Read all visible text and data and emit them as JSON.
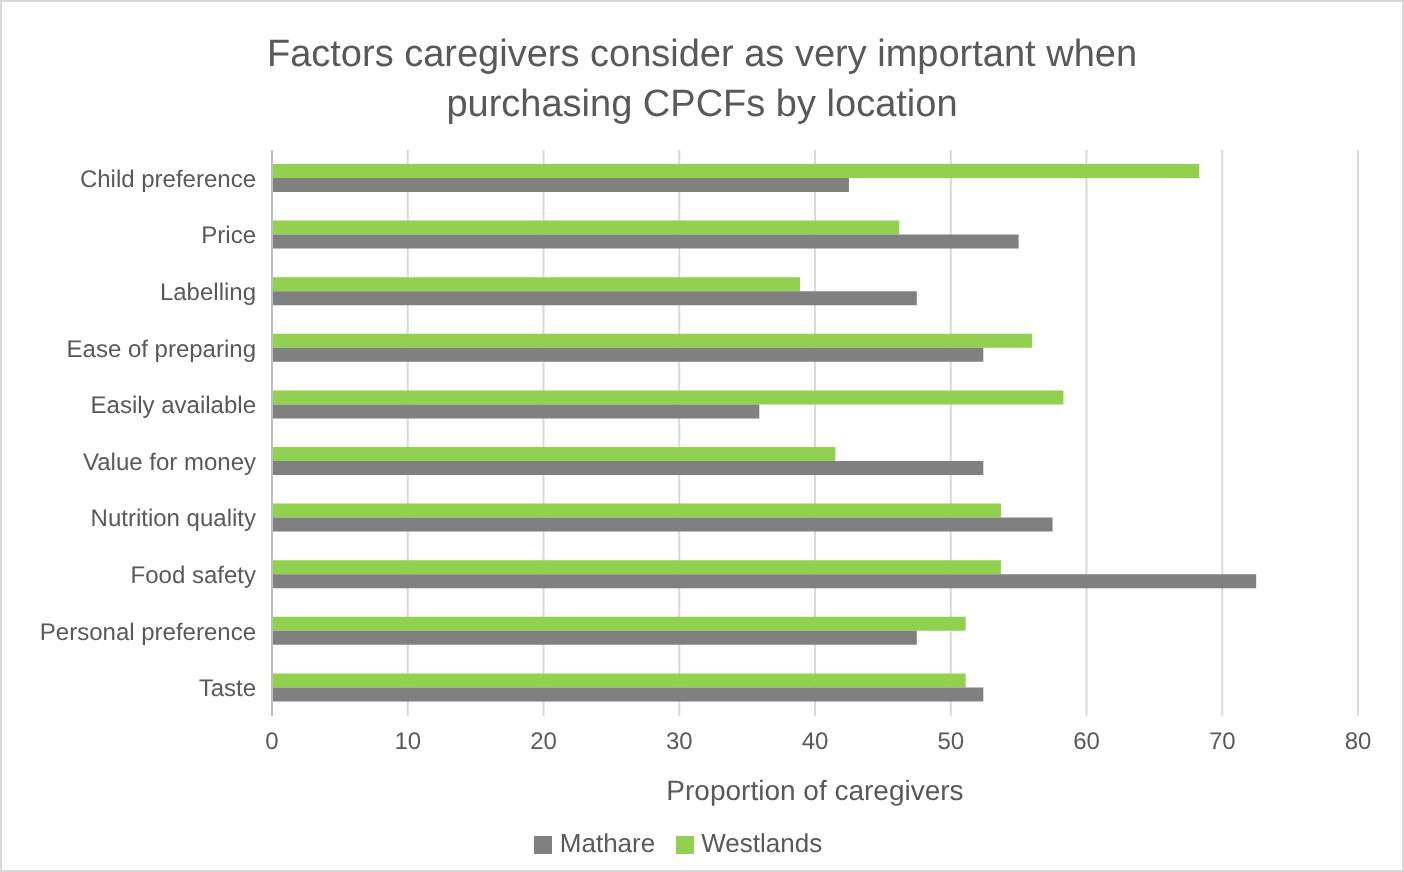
{
  "chart_data": {
    "type": "bar",
    "orientation": "horizontal",
    "title": "Factors caregivers consider as very important when purchasing CPCFs by location",
    "xlabel": "Proportion of caregivers",
    "categories": [
      "Child preference",
      "Price",
      "Labelling",
      "Ease of preparing",
      "Easily available",
      "Value for money",
      "Nutrition quality",
      "Food safety",
      "Personal preference",
      "Taste"
    ],
    "series": [
      {
        "name": "Westlands",
        "color": "#92d050",
        "values": [
          68.3,
          46.2,
          38.9,
          56.0,
          58.3,
          41.5,
          53.7,
          53.7,
          51.1,
          51.1
        ]
      },
      {
        "name": "Mathare",
        "color": "#808080",
        "values": [
          42.5,
          55.0,
          47.5,
          52.4,
          35.9,
          52.4,
          57.5,
          72.5,
          47.5,
          52.4
        ]
      }
    ],
    "xlim": [
      0,
      80
    ],
    "xticks": [
      0,
      10,
      20,
      30,
      40,
      50,
      60,
      70,
      80
    ],
    "grid": "x",
    "legend": "bottom"
  }
}
